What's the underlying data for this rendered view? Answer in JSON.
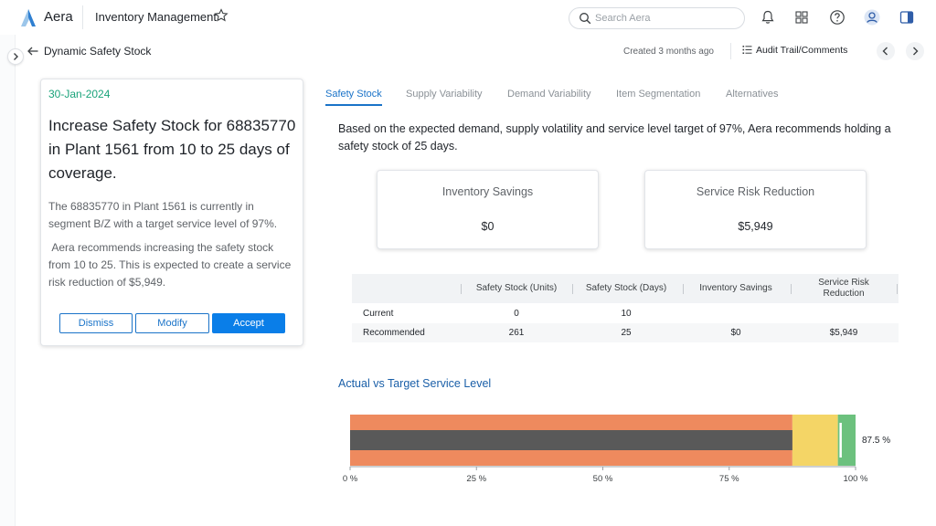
{
  "header": {
    "brand": "Aera",
    "app_title": "Inventory Management",
    "search_placeholder": "Search Aera"
  },
  "subheader": {
    "page_title": "Dynamic Safety Stock",
    "created": "Created 3 months ago",
    "audit_label": "Audit Trail/Comments"
  },
  "card": {
    "date": "30-Jan-2024",
    "headline": "Increase Safety Stock for 68835770 in Plant 1561 from 10 to 25 days of coverage.",
    "para1": "The 68835770 in Plant 1561 is currently in segment B/Z with a target service level of 97%.",
    "para2": " Aera recommends increasing the safety stock from 10 to 25. This is expected to create a service risk reduction of $5,949.",
    "buttons": {
      "dismiss": "Dismiss",
      "modify": "Modify",
      "accept": "Accept"
    }
  },
  "tabs": [
    {
      "label": "Safety Stock",
      "active": true
    },
    {
      "label": "Supply Variability",
      "active": false
    },
    {
      "label": "Demand Variability",
      "active": false
    },
    {
      "label": "Item Segmentation",
      "active": false
    },
    {
      "label": "Alternatives",
      "active": false
    }
  ],
  "summary": "Based on the expected demand, supply volatility and service level target of 97%, Aera recommends holding a safety stock of 25 days.",
  "kpis": [
    {
      "label": "Inventory Savings",
      "value": "$0"
    },
    {
      "label": "Service Risk Reduction",
      "value": "$5,949"
    }
  ],
  "table": {
    "headers": [
      "Safety Stock (Units)",
      "Safety Stock (Days)",
      "Inventory Savings",
      "Service Risk Reduction"
    ],
    "rows": [
      {
        "label": "Current",
        "cells": [
          "0",
          "10",
          "",
          ""
        ]
      },
      {
        "label": "Recommended",
        "cells": [
          "261",
          "25",
          "$0",
          "$5,949"
        ]
      }
    ]
  },
  "section_title": "Actual vs Target Service Level",
  "chart_data": {
    "type": "bar",
    "orientation": "horizontal",
    "title": "Actual vs Target Service Level",
    "xlim": [
      0,
      100
    ],
    "x_ticks": [
      "0 %",
      "25 %",
      "50 %",
      "75 %",
      "100 %"
    ],
    "x_tick_values": [
      0,
      25,
      50,
      75,
      100
    ],
    "bands": [
      {
        "from": 0,
        "to": 87.5,
        "color": "#ee8a5e"
      },
      {
        "from": 87.5,
        "to": 96.5,
        "color": "#f4d566"
      },
      {
        "from": 96.5,
        "to": 100,
        "color": "#6cc17e"
      }
    ],
    "actual": 87.5,
    "actual_label": "87.5 %",
    "actual_color": "#595959",
    "target": 97
  },
  "colors": {
    "accent": "#1a73c8",
    "date_green": "#1aa37a",
    "section_title": "#1a5fa8"
  },
  "icons": {
    "star": "star-icon",
    "search": "search-icon",
    "bell": "bell-icon",
    "grid": "grid-icon",
    "help": "help-icon",
    "user": "user-icon",
    "panel": "panel-icon"
  }
}
